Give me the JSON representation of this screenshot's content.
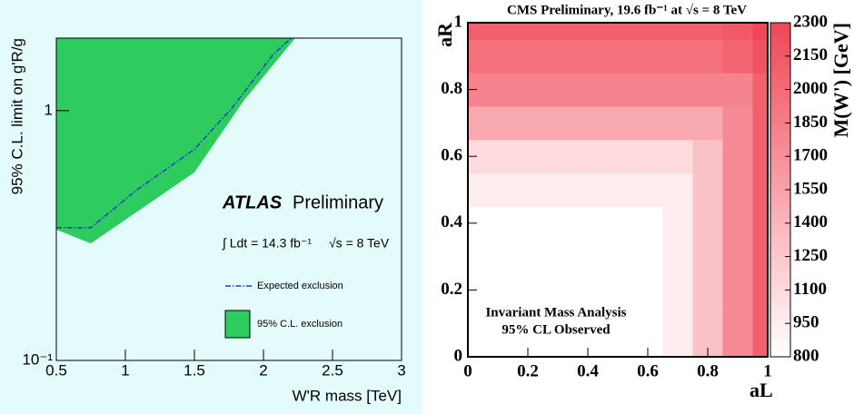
{
  "chart_data": [
    {
      "type": "line",
      "axis_labels": {
        "x": "W'R mass [TeV]",
        "y": "95% C.L. limit on g'R/g"
      },
      "annotations": [
        "ATLAS",
        "Preliminary",
        "∫ Ldt = 14.3 fb⁻¹",
        "√s = 8 TeV"
      ],
      "xlim": [
        0.5,
        3
      ],
      "xticks": [
        0.5,
        1,
        1.5,
        2,
        2.5,
        3
      ],
      "ylim": [
        0.1,
        1.95
      ],
      "yticks": [
        {
          "value": 0.1,
          "label": "10⁻¹"
        },
        1
      ],
      "log_y": true,
      "series": [
        {
          "name": "Expected exclusion",
          "color": "#1f3fd0",
          "style": "dash-dot",
          "x": [
            0.5,
            0.75,
            1.08,
            1.5,
            1.77,
            2.07,
            2.2
          ],
          "values": [
            0.34,
            0.34,
            0.48,
            0.7,
            1.02,
            1.68,
            1.95
          ]
        },
        {
          "name": "95% C.L. exclusion",
          "color": "#2ecc5e",
          "style": "fill-above",
          "x": [
            0.5,
            0.75,
            1.5,
            1.86,
            2.23
          ],
          "values": [
            0.334,
            0.294,
            0.566,
            1.1,
            1.95
          ]
        }
      ]
    },
    {
      "type": "heatmap",
      "title": "CMS Preliminary, 19.6 fb⁻¹ at √s = 8 TeV",
      "axis_labels": {
        "x": "aL",
        "y": "aR",
        "colorbar": "M(W') [GeV]"
      },
      "annotations": [
        "Invariant Mass Analysis",
        "95% CL Observed"
      ],
      "xlim": [
        0,
        1
      ],
      "xticks": [
        0,
        0.2,
        0.4,
        0.6,
        0.8,
        1
      ],
      "ylim": [
        0,
        1
      ],
      "yticks": [
        0,
        0.2,
        0.4,
        0.6,
        0.8,
        1
      ],
      "zlim": [
        800,
        2300
      ],
      "zticks": [
        800,
        950,
        1100,
        1250,
        1400,
        1550,
        1700,
        1850,
        2000,
        2150,
        2300
      ],
      "colors": [
        "#ffffff",
        "#f04656"
      ],
      "x": [
        0,
        0.1,
        0.2,
        0.3,
        0.4,
        0.5,
        0.6,
        0.7,
        0.8,
        0.9,
        1
      ],
      "y": [
        0,
        0.1,
        0.2,
        0.3,
        0.4,
        0.5,
        0.6,
        0.7,
        0.8,
        0.9,
        1
      ],
      "z": [
        [
          800,
          800,
          800,
          800,
          800,
          800,
          800,
          950,
          1300,
          1750,
          2100
        ],
        [
          800,
          800,
          800,
          800,
          800,
          800,
          800,
          950,
          1300,
          1750,
          2100
        ],
        [
          800,
          800,
          800,
          800,
          800,
          800,
          800,
          950,
          1300,
          1750,
          2100
        ],
        [
          800,
          800,
          800,
          800,
          800,
          800,
          800,
          950,
          1300,
          1750,
          2100
        ],
        [
          800,
          800,
          800,
          800,
          800,
          800,
          800,
          950,
          1300,
          1750,
          2100
        ],
        [
          950,
          950,
          950,
          950,
          950,
          950,
          950,
          950,
          1300,
          1750,
          2100
        ],
        [
          1100,
          1100,
          1100,
          1100,
          1100,
          1100,
          1100,
          1100,
          1300,
          1750,
          2100
        ],
        [
          1500,
          1500,
          1500,
          1500,
          1500,
          1500,
          1500,
          1500,
          1500,
          1750,
          2100
        ],
        [
          1800,
          1800,
          1800,
          1800,
          1800,
          1800,
          1800,
          1800,
          1800,
          1800,
          2100
        ],
        [
          1950,
          1950,
          1950,
          1950,
          1950,
          1950,
          1950,
          1950,
          1950,
          2050,
          2200
        ],
        [
          2100,
          2100,
          2100,
          2100,
          2100,
          2100,
          2100,
          2100,
          2100,
          2150,
          2300
        ]
      ]
    }
  ]
}
